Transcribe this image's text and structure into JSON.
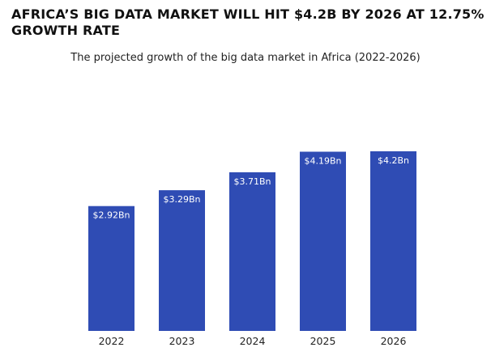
{
  "chart_data": {
    "type": "bar",
    "title": "AFRICA’S BIG DATA MARKET WILL HIT $4.2B BY 2026 AT 12.75% GROWTH RATE",
    "subtitle": "The projected growth of the big data market in Africa (2022-2026)",
    "categories": [
      "2022",
      "2023",
      "2024",
      "2025",
      "2026"
    ],
    "values": [
      2.92,
      3.29,
      3.71,
      4.19,
      4.2
    ],
    "data_labels": [
      "$2.92Bn",
      "$3.29Bn",
      "$3.71Bn",
      "$4.19Bn",
      "$4.2Bn"
    ],
    "unit": "Bn",
    "xlabel": "",
    "ylabel": "",
    "grid": false,
    "legend": "none",
    "bar_color": "#2f4cb4"
  }
}
